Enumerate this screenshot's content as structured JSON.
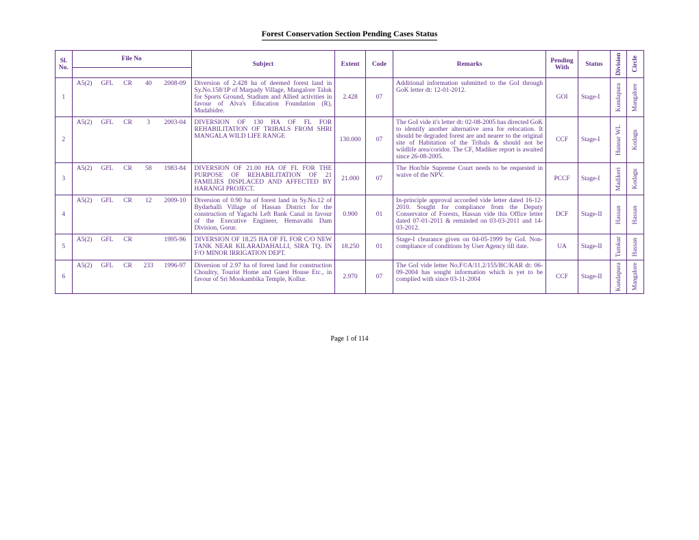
{
  "title": "Forest Conservation Section Pending Cases Status",
  "footer": "Page 1 of 114",
  "headers": {
    "sl": "Sl. No.",
    "file": "File No",
    "subject": "Subject",
    "extent": "Extent",
    "code": "Code",
    "remarks": "Remarks",
    "pending": "Pending With",
    "status": "Status",
    "division": "Division",
    "circle": "Circle"
  },
  "style": {
    "border_color": "#5a2a82",
    "text_color": "#5a2a82",
    "title_color": "#000000",
    "background": "#ffffff",
    "font_family": "Times New Roman",
    "header_fontsize": 9.5,
    "cell_fontsize": 9.5,
    "title_fontsize": 12
  },
  "rows": [
    {
      "sl": "1",
      "file": [
        "A5(2)",
        "GFL",
        "CR",
        "40",
        "2008-09"
      ],
      "subject": "Diversion of 2.428 ha of deemed forest land in Sy.No.158/1P of Marpady Village, Mangalore Taluk for Sports Ground, Stadium and Allied activities in favour of Alva's Education Foundation (R), Mudabidre.",
      "extent": "2.428",
      "code": "07",
      "remarks": "Additional information submitted to the GoI through GoK letter dt: 12-01-2012.",
      "pending": "GOI",
      "status": "Stage-I",
      "division": "Kundapura",
      "circle": "Mangalore"
    },
    {
      "sl": "2",
      "file": [
        "A5(2)",
        "GFL",
        "CR",
        "3",
        "2003-04"
      ],
      "subject": "DIVERSION OF 130 HA OF FL FOR REHABILITATION OF TRIBALS FROM SHRI MANGALA WILD LIFE RANGE",
      "extent": "130.000",
      "code": "07",
      "remarks": "The GoI vide it's letter dt: 02-08-2005 has directed GoK to identify another alternative area for relocation. It should be degraded forest are and nearer to the original site of Habitation of the Tribals & should not be wildlife area/coridor. The CF, Madiker report is awaited since 26-08-2005.",
      "pending": "CCF",
      "status": "Stage-I",
      "division": "Hunsur WL",
      "circle": "Kodagu"
    },
    {
      "sl": "3",
      "file": [
        "A5(2)",
        "GFL",
        "CR",
        "58",
        "1983-84"
      ],
      "subject": " DIVERSION OF 21.00 HA OF FL FOR THE PURPOSE OF REHABILITATION OF 21 FAMILIES DISPLACED AND AFFECTED BY HARANGI PROJECT.",
      "extent": "21.000",
      "code": "07",
      "remarks": "The Hon'ble Supreme Court needs to be requested in waive of  the NPV.",
      "pending": "PCCF",
      "status": "Stage-I",
      "division": "Madikeri",
      "circle": "Kodagu"
    },
    {
      "sl": "4",
      "file": [
        "A5(2)",
        "GFL",
        "CR",
        "12",
        "2009-10"
      ],
      "subject": "Diversion of 0.90 ha of forest land in Sy.No.12 of Bydarhalli Village of Hassan District for the construction of Yagachi Left Bank Canal in favour of the Executive Engineer, Hemavathi Dam Division, Gorur.",
      "extent": "0.900",
      "code": "01",
      "remarks": "In-principle approval accorded vide letter dated 16-12-2010.  Sought for compliance from the Deputy Conservator of Forests, Hassan vide this Office letter dated 07-01-2011 & reminded on 03-03-2011 and  14-03-2012.",
      "pending": "DCF",
      "status": "Stage-II",
      "division": "Hassan",
      "circle": "Hassan"
    },
    {
      "sl": "5",
      "file": [
        "A5(2)",
        "GFL",
        "CR",
        "",
        "1995-96"
      ],
      "subject": "DIVERSION OF 18.25 HA OF FL FOR C/O NEW TANK NEAR KILARADAHALLI, SIRA TQ. IN F/O MINOR IRRIGATION DEPT.",
      "extent": "18.250",
      "code": "01",
      "remarks": "Stage-I clearance given on 04-05-1999 by GoI. Non-compliance of conditions by User Agency till date.",
      "pending": "UA",
      "status": "Stage-II",
      "division": "Tumkur",
      "circle": "Hassan"
    },
    {
      "sl": "6",
      "file": [
        "A5(2)",
        "GFL",
        "CR",
        "233",
        "1996-97"
      ],
      "subject": "Diversion of 2.97 ha of forest land for construction Choultry, Tourist Home and Guest House Etc., in favour of Sri Mookambika Temple, Kollur.",
      "extent": "2.970",
      "code": "07",
      "remarks": "The GoI vide letter No.F©A/11.2/155/BC/KAR dt: 06-09-2004 has sought information which is yet to be complied with since 03-11-2004",
      "pending": "CCF",
      "status": "Stage-II",
      "division": "Kundapura",
      "circle": "Mangalore"
    }
  ]
}
